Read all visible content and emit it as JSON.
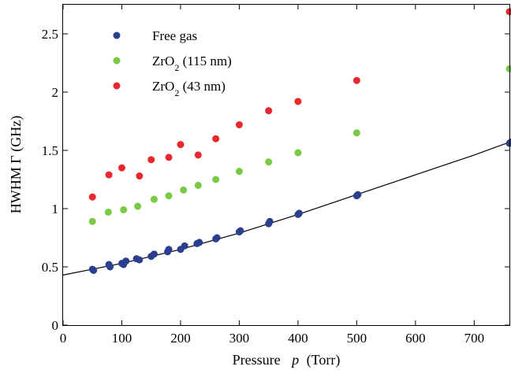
{
  "chart_data": {
    "type": "scatter",
    "xlabel": "Pressure",
    "xlabel_symbol": "p",
    "xlabel_unit": "(Torr)",
    "ylabel": "HWHM Γ (GHz)",
    "xlim": [
      0,
      760
    ],
    "ylim": [
      0,
      2.75
    ],
    "x_ticks": [
      0,
      100,
      200,
      300,
      400,
      500,
      600,
      700
    ],
    "x_tick_labels": [
      "0",
      "100",
      "200",
      "300",
      "400",
      "500",
      "600",
      "700"
    ],
    "y_ticks": [
      0,
      0.5,
      1,
      1.5,
      2,
      2.5
    ],
    "y_tick_labels": [
      "0",
      "0.5",
      "1",
      "1.5",
      "2",
      "2.5"
    ],
    "grid": false,
    "legend_position": "top-left",
    "series": [
      {
        "name": "Free gas",
        "legend_base": "Free gas",
        "legend_sub": "",
        "legend_suffix": "",
        "color": "#2b3f8f",
        "points": [
          [
            50,
            0.48
          ],
          [
            52,
            0.47
          ],
          [
            78,
            0.52
          ],
          [
            80,
            0.5
          ],
          [
            100,
            0.53
          ],
          [
            103,
            0.52
          ],
          [
            107,
            0.55
          ],
          [
            125,
            0.57
          ],
          [
            130,
            0.56
          ],
          [
            150,
            0.59
          ],
          [
            155,
            0.61
          ],
          [
            178,
            0.63
          ],
          [
            180,
            0.65
          ],
          [
            200,
            0.65
          ],
          [
            207,
            0.68
          ],
          [
            228,
            0.7
          ],
          [
            232,
            0.71
          ],
          [
            260,
            0.74
          ],
          [
            262,
            0.75
          ],
          [
            300,
            0.8
          ],
          [
            302,
            0.81
          ],
          [
            350,
            0.87
          ],
          [
            352,
            0.89
          ],
          [
            400,
            0.95
          ],
          [
            402,
            0.96
          ],
          [
            500,
            1.11
          ],
          [
            502,
            1.12
          ],
          [
            760,
            1.56
          ],
          [
            762,
            1.57
          ]
        ]
      },
      {
        "name": "ZrO2 (115 nm)",
        "legend_base": "ZrO",
        "legend_sub": "2",
        "legend_suffix": " (115 nm)",
        "color": "#7ac943",
        "points": [
          [
            50,
            0.89
          ],
          [
            77,
            0.97
          ],
          [
            103,
            0.99
          ],
          [
            127,
            1.02
          ],
          [
            155,
            1.08
          ],
          [
            180,
            1.11
          ],
          [
            205,
            1.16
          ],
          [
            230,
            1.2
          ],
          [
            260,
            1.25
          ],
          [
            300,
            1.32
          ],
          [
            350,
            1.4
          ],
          [
            400,
            1.48
          ],
          [
            500,
            1.65
          ],
          [
            760,
            2.2
          ]
        ]
      },
      {
        "name": "ZrO2 (43 nm)",
        "legend_base": "ZrO",
        "legend_sub": "2",
        "legend_suffix": " (43 nm)",
        "color": "#e8282e",
        "points": [
          [
            50,
            1.1
          ],
          [
            78,
            1.29
          ],
          [
            100,
            1.35
          ],
          [
            130,
            1.28
          ],
          [
            150,
            1.42
          ],
          [
            180,
            1.44
          ],
          [
            200,
            1.55
          ],
          [
            230,
            1.46
          ],
          [
            260,
            1.6
          ],
          [
            300,
            1.72
          ],
          [
            350,
            1.84
          ],
          [
            400,
            1.92
          ],
          [
            500,
            2.1
          ],
          [
            760,
            2.69
          ]
        ]
      }
    ],
    "fit_line": {
      "color": "#000000",
      "points": [
        [
          0,
          0.43
        ],
        [
          100,
          0.53
        ],
        [
          200,
          0.65
        ],
        [
          300,
          0.79
        ],
        [
          400,
          0.95
        ],
        [
          500,
          1.12
        ],
        [
          600,
          1.29
        ],
        [
          700,
          1.46
        ],
        [
          760,
          1.57
        ]
      ]
    }
  }
}
